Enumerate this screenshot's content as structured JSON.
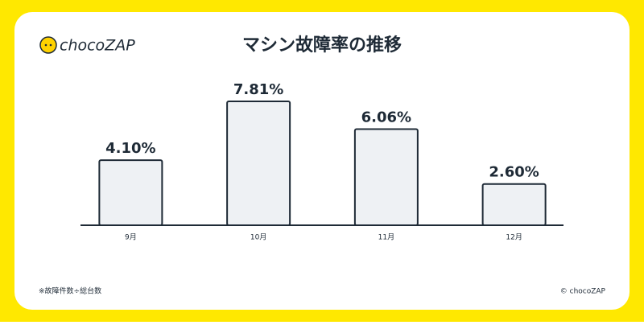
{
  "logo": "chocoZAP",
  "footnote": "※故障件数÷総台数",
  "copyright": "© chocoZAP",
  "chart_data": {
    "type": "bar",
    "title": "マシン故障率の推移",
    "categories": [
      "9月",
      "10月",
      "11月",
      "12月"
    ],
    "values": [
      4.1,
      7.81,
      6.06,
      2.6
    ],
    "value_labels": [
      "4.10%",
      "7.81%",
      "6.06%",
      "2.60%"
    ],
    "color": "#eef1f4"
  }
}
